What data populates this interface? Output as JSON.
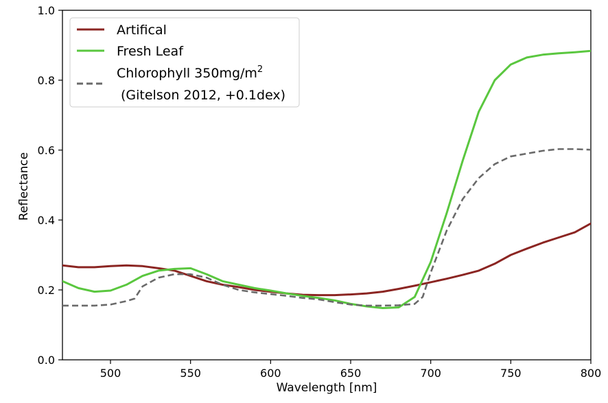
{
  "chart_data": {
    "type": "line",
    "title": "",
    "xlabel": "Wavelength [nm]",
    "ylabel": "Reflectance",
    "xlim": [
      470,
      800
    ],
    "ylim": [
      0.0,
      1.0
    ],
    "xticks": [
      500,
      550,
      600,
      650,
      700,
      750,
      800
    ],
    "yticks": [
      0.0,
      0.2,
      0.4,
      0.6,
      0.8,
      1.0
    ],
    "xtick_labels": [
      "500",
      "550",
      "600",
      "650",
      "700",
      "750",
      "800"
    ],
    "ytick_labels": [
      "0.0",
      "0.2",
      "0.4",
      "0.6",
      "0.8",
      "1.0"
    ],
    "grid": false,
    "legend_position": "top-left",
    "series": [
      {
        "name": "Artifical",
        "color": "#8b2522",
        "style": "solid",
        "x": [
          470,
          480,
          490,
          500,
          510,
          520,
          530,
          540,
          550,
          560,
          570,
          580,
          590,
          600,
          610,
          620,
          630,
          640,
          650,
          660,
          670,
          680,
          690,
          700,
          710,
          720,
          730,
          740,
          750,
          760,
          770,
          780,
          790,
          800
        ],
        "y": [
          0.27,
          0.265,
          0.265,
          0.268,
          0.27,
          0.268,
          0.262,
          0.255,
          0.24,
          0.225,
          0.215,
          0.208,
          0.2,
          0.195,
          0.19,
          0.186,
          0.185,
          0.185,
          0.187,
          0.19,
          0.195,
          0.203,
          0.212,
          0.222,
          0.232,
          0.243,
          0.255,
          0.275,
          0.3,
          0.318,
          0.335,
          0.35,
          0.365,
          0.39
        ]
      },
      {
        "name": "Fresh Leaf",
        "color": "#5ac73f",
        "style": "solid",
        "x": [
          470,
          480,
          490,
          500,
          510,
          520,
          530,
          540,
          550,
          560,
          570,
          580,
          590,
          600,
          610,
          620,
          630,
          640,
          650,
          660,
          670,
          680,
          690,
          700,
          710,
          720,
          730,
          740,
          750,
          760,
          770,
          780,
          790,
          800
        ],
        "y": [
          0.225,
          0.205,
          0.195,
          0.198,
          0.215,
          0.24,
          0.255,
          0.26,
          0.262,
          0.245,
          0.225,
          0.215,
          0.205,
          0.198,
          0.19,
          0.183,
          0.177,
          0.17,
          0.16,
          0.153,
          0.148,
          0.15,
          0.18,
          0.28,
          0.42,
          0.57,
          0.71,
          0.8,
          0.845,
          0.865,
          0.873,
          0.877,
          0.88,
          0.884
        ]
      },
      {
        "name": "Chlorophyll 350mg/m2 (Gitelson 2012, +0.1dex)",
        "color": "#6a6a6a",
        "style": "dashed",
        "x": [
          470,
          480,
          490,
          500,
          510,
          515,
          520,
          530,
          540,
          550,
          560,
          570,
          580,
          590,
          600,
          610,
          620,
          630,
          640,
          650,
          660,
          670,
          680,
          690,
          695,
          700,
          710,
          720,
          730,
          740,
          750,
          760,
          770,
          780,
          790,
          800
        ],
        "y": [
          0.155,
          0.155,
          0.155,
          0.158,
          0.168,
          0.175,
          0.21,
          0.235,
          0.245,
          0.245,
          0.235,
          0.215,
          0.2,
          0.193,
          0.188,
          0.183,
          0.177,
          0.173,
          0.165,
          0.158,
          0.155,
          0.155,
          0.156,
          0.16,
          0.18,
          0.25,
          0.37,
          0.46,
          0.52,
          0.56,
          0.582,
          0.59,
          0.598,
          0.603,
          0.603,
          0.601
        ]
      }
    ]
  },
  "legend": {
    "items": [
      {
        "line1": "Artifical"
      },
      {
        "line1": "Fresh Leaf"
      },
      {
        "line1_main": "Chlorophyll 350mg/m",
        "line1_sup": "2",
        "line2": "(Gitelson 2012, +0.1dex)"
      }
    ]
  }
}
